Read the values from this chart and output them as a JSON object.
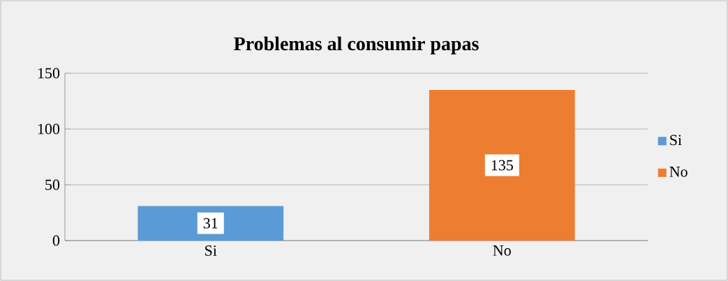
{
  "chart_data": {
    "type": "bar",
    "title": "Problemas al consumir papas",
    "categories": [
      "Si",
      "No"
    ],
    "series": [
      {
        "name": "Si",
        "color": "#5b9bd5",
        "values": [
          31,
          null
        ]
      },
      {
        "name": "No",
        "color": "#ed7d31",
        "values": [
          null,
          135
        ]
      }
    ],
    "ylim": [
      0,
      150
    ],
    "yticks": [
      0,
      50,
      100,
      150
    ],
    "grid": "y",
    "legend": "right",
    "data_labels": true
  }
}
